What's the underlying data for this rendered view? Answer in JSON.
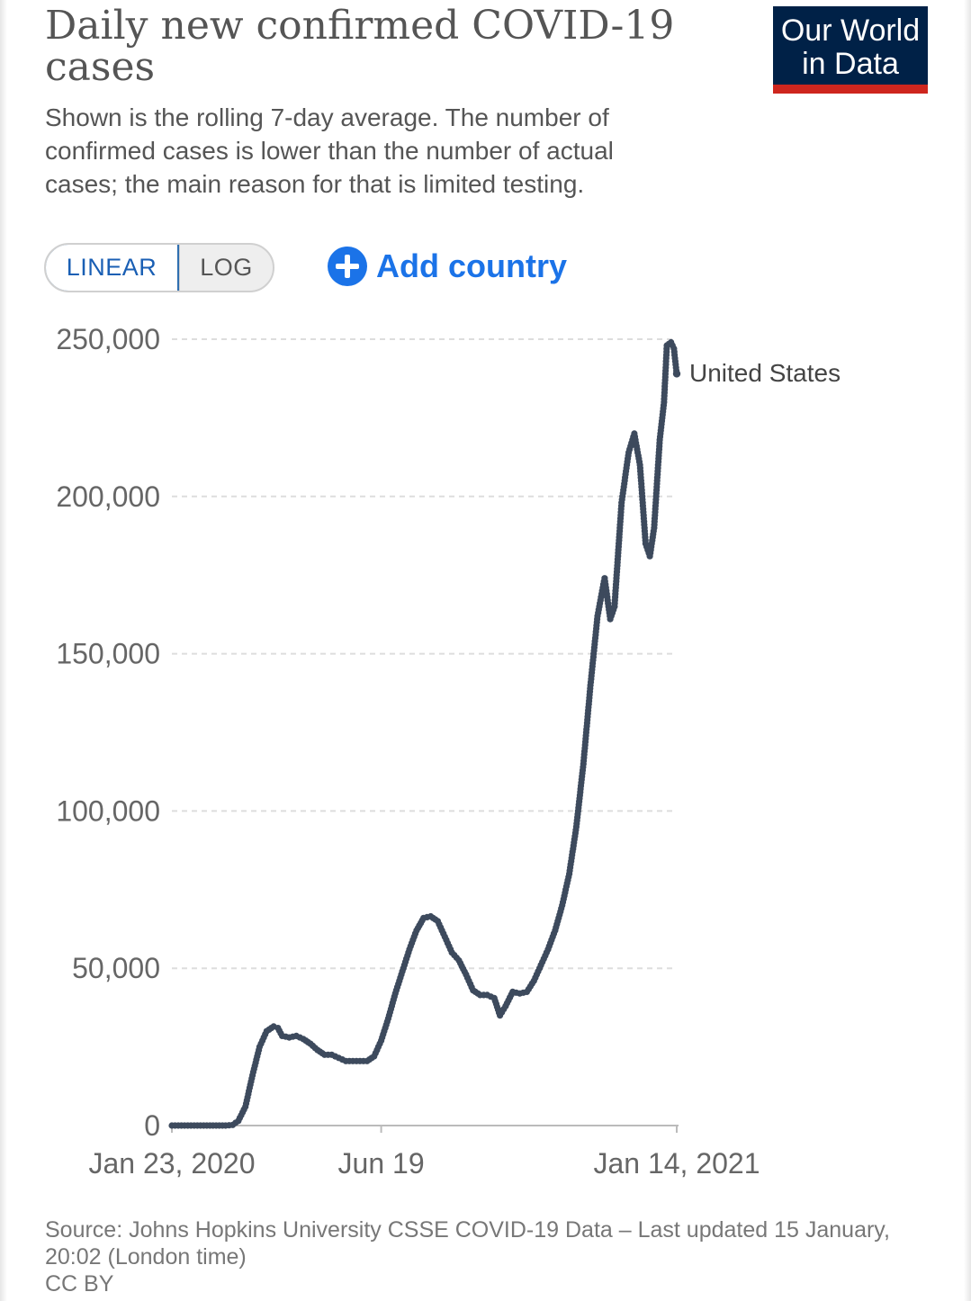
{
  "header": {
    "title": "Daily new confirmed COVID-19 cases",
    "subtitle": "Shown is the rolling 7-day average. The number of confirmed cases is lower than the number of actual cases; the main reason for that is limited testing.",
    "logo_line1": "Our World",
    "logo_line2": "in Data"
  },
  "controls": {
    "linear_label": "LINEAR",
    "log_label": "LOG",
    "add_country_label": "Add country"
  },
  "footer": {
    "source": "Source: Johns Hopkins University CSSE COVID-19 Data – Last updated 15 January, 20:02 (London time)",
    "license": "CC BY"
  },
  "colors": {
    "line": "#3d4a5d",
    "grid": "#dddddd",
    "logo_bg": "#002147",
    "logo_bar": "#ce261e",
    "accent": "#1b73e8"
  },
  "chart_data": {
    "type": "line",
    "title": "Daily new confirmed COVID-19 cases",
    "xlabel": "",
    "ylabel": "",
    "x_start": "2020-01-23",
    "x_end": "2021-01-14",
    "x_ticks": [
      {
        "date": "2020-01-23",
        "label": "Jan 23, 2020"
      },
      {
        "date": "2020-06-19",
        "label": "Jun 19"
      },
      {
        "date": "2021-01-14",
        "label": "Jan 14, 2021"
      }
    ],
    "y_ticks": [
      {
        "value": 0,
        "label": "0"
      },
      {
        "value": 50000,
        "label": "50,000"
      },
      {
        "value": 100000,
        "label": "100,000"
      },
      {
        "value": 150000,
        "label": "150,000"
      },
      {
        "value": 200000,
        "label": "200,000"
      },
      {
        "value": 250000,
        "label": "250,000"
      }
    ],
    "ylim": [
      0,
      250000
    ],
    "grid": "horizontal dashed",
    "series": [
      {
        "name": "United States",
        "points": [
          [
            "2020-01-23",
            0
          ],
          [
            "2020-02-10",
            0
          ],
          [
            "2020-03-01",
            0
          ],
          [
            "2020-03-06",
            200
          ],
          [
            "2020-03-10",
            1500
          ],
          [
            "2020-03-15",
            6000
          ],
          [
            "2020-03-20",
            16000
          ],
          [
            "2020-03-25",
            25000
          ],
          [
            "2020-03-30",
            30000
          ],
          [
            "2020-04-04",
            31500
          ],
          [
            "2020-04-07",
            31000
          ],
          [
            "2020-04-10",
            28500
          ],
          [
            "2020-04-15",
            28000
          ],
          [
            "2020-04-20",
            28500
          ],
          [
            "2020-04-25",
            27500
          ],
          [
            "2020-04-30",
            26000
          ],
          [
            "2020-05-05",
            24000
          ],
          [
            "2020-05-10",
            22500
          ],
          [
            "2020-05-15",
            22500
          ],
          [
            "2020-05-20",
            21500
          ],
          [
            "2020-05-25",
            20500
          ],
          [
            "2020-05-30",
            20500
          ],
          [
            "2020-06-04",
            20500
          ],
          [
            "2020-06-09",
            20500
          ],
          [
            "2020-06-14",
            22000
          ],
          [
            "2020-06-19",
            27000
          ],
          [
            "2020-06-24",
            34000
          ],
          [
            "2020-06-29",
            42000
          ],
          [
            "2020-07-04",
            49000
          ],
          [
            "2020-07-09",
            56000
          ],
          [
            "2020-07-14",
            62000
          ],
          [
            "2020-07-19",
            66000
          ],
          [
            "2020-07-24",
            66500
          ],
          [
            "2020-07-29",
            65000
          ],
          [
            "2020-08-03",
            60000
          ],
          [
            "2020-08-08",
            55000
          ],
          [
            "2020-08-13",
            52500
          ],
          [
            "2020-08-18",
            48000
          ],
          [
            "2020-08-23",
            43000
          ],
          [
            "2020-08-28",
            41500
          ],
          [
            "2020-09-02",
            41500
          ],
          [
            "2020-09-07",
            40500
          ],
          [
            "2020-09-11",
            35000
          ],
          [
            "2020-09-15",
            38000
          ],
          [
            "2020-09-20",
            42500
          ],
          [
            "2020-09-25",
            42000
          ],
          [
            "2020-09-30",
            42500
          ],
          [
            "2020-10-05",
            46000
          ],
          [
            "2020-10-10",
            51000
          ],
          [
            "2020-10-15",
            56000
          ],
          [
            "2020-10-20",
            62000
          ],
          [
            "2020-10-25",
            70000
          ],
          [
            "2020-10-30",
            80000
          ],
          [
            "2020-11-04",
            95000
          ],
          [
            "2020-11-09",
            115000
          ],
          [
            "2020-11-14",
            140000
          ],
          [
            "2020-11-19",
            162000
          ],
          [
            "2020-11-24",
            174000
          ],
          [
            "2020-11-28",
            161000
          ],
          [
            "2020-12-01",
            165000
          ],
          [
            "2020-12-06",
            198000
          ],
          [
            "2020-12-11",
            214000
          ],
          [
            "2020-12-15",
            220000
          ],
          [
            "2020-12-19",
            210000
          ],
          [
            "2020-12-23",
            185000
          ],
          [
            "2020-12-26",
            181000
          ],
          [
            "2020-12-29",
            190000
          ],
          [
            "2021-01-02",
            218000
          ],
          [
            "2021-01-05",
            230000
          ],
          [
            "2021-01-07",
            248000
          ],
          [
            "2021-01-10",
            249000
          ],
          [
            "2021-01-12",
            247000
          ],
          [
            "2021-01-14",
            239000
          ]
        ]
      }
    ]
  }
}
